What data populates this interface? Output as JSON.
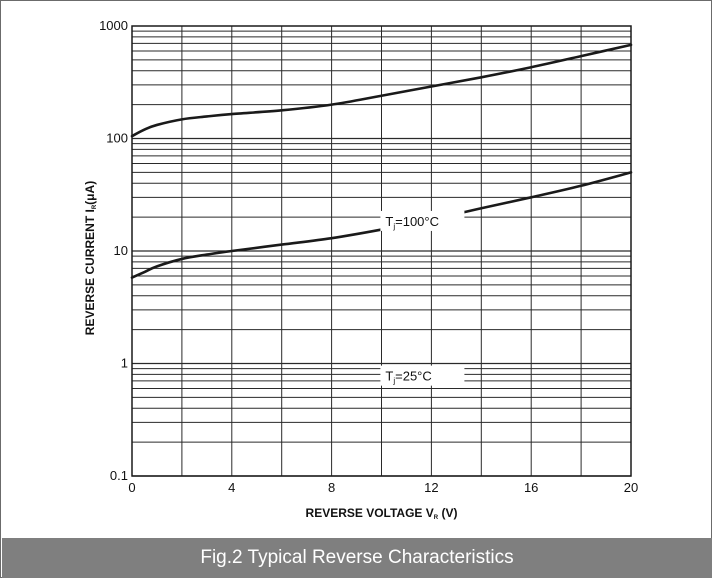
{
  "caption": "Fig.2 Typical Reverse Characteristics",
  "chart_data": {
    "type": "line",
    "title": "",
    "xlabel": "REVERSE VOLTAGE",
    "xlabel_symbol": "V",
    "xlabel_subscript": "R",
    "xlabel_unit": "(V)",
    "ylabel": "REVERSE CURRENT",
    "ylabel_symbol": "I",
    "ylabel_subscript": "R",
    "ylabel_unit": "(μA)",
    "xlim": [
      0,
      20
    ],
    "ylim": [
      0.1,
      1000
    ],
    "yscale": "log",
    "grid": true,
    "x_ticks": [
      0,
      4,
      8,
      12,
      16,
      20
    ],
    "x_tick_labels": [
      "0",
      "4",
      "8",
      "12",
      "16",
      "20"
    ],
    "y_ticks": [
      0.1,
      1,
      10,
      100,
      1000
    ],
    "y_tick_labels": [
      "0.1",
      "1",
      "10",
      "100",
      "1000"
    ],
    "series": [
      {
        "name": "Tj=100°C",
        "label_prefix": "T",
        "label_subscript": "j",
        "label_suffix": "=100°C",
        "color": "#1a1a1a",
        "x": [
          0,
          0.5,
          1,
          2,
          3,
          4,
          6,
          8,
          10,
          12,
          14,
          16,
          18,
          20
        ],
        "y": [
          105,
          120,
          132,
          148,
          157,
          165,
          178,
          200,
          240,
          290,
          350,
          430,
          540,
          680
        ]
      },
      {
        "name": "Tj=25°C",
        "label_prefix": "T",
        "label_subscript": "j",
        "label_suffix": "=25°C",
        "color": "#1a1a1a",
        "x": [
          0,
          0.5,
          1,
          2,
          3,
          4,
          6,
          8,
          10,
          12,
          14,
          16,
          18,
          20
        ],
        "y": [
          5.8,
          6.5,
          7.3,
          8.5,
          9.3,
          10,
          11.4,
          13,
          15.5,
          19,
          24,
          30,
          38,
          50
        ]
      }
    ]
  }
}
